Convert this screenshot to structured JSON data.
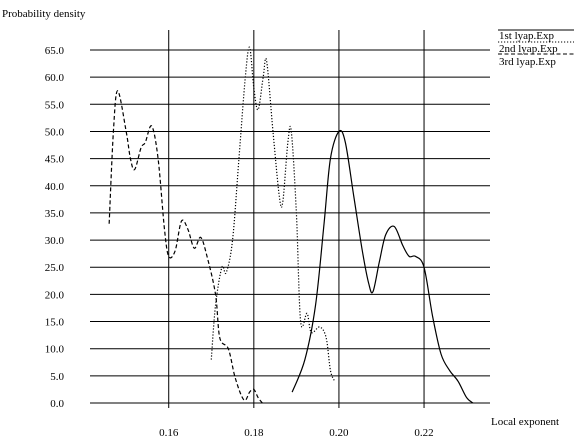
{
  "chart_data": {
    "type": "line",
    "title": "",
    "ylabel": "Probability density",
    "xlabel": "Local exponent",
    "xlim": [
      0.1415,
      0.2355
    ],
    "ylim": [
      0,
      65
    ],
    "x_ticks": [
      "0.16",
      "0.18",
      "0.20",
      "0.22"
    ],
    "y_ticks": [
      "0.0",
      "5.0",
      "10.0",
      "15.0",
      "20.0",
      "25.0",
      "30.0",
      "35.0",
      "40.0",
      "45.0",
      "50.0",
      "55.0",
      "60.0",
      "65.0"
    ],
    "grid": "on",
    "legend_position": "top-right",
    "series": [
      {
        "name": "1st lyap.Exp",
        "style": "solid",
        "color": "#000000",
        "points": [
          [
            0.189,
            2.0
          ],
          [
            0.192,
            8.0
          ],
          [
            0.1945,
            18.0
          ],
          [
            0.1965,
            33.0
          ],
          [
            0.198,
            45.0
          ],
          [
            0.2,
            50.0
          ],
          [
            0.2015,
            48.0
          ],
          [
            0.2035,
            38.0
          ],
          [
            0.2055,
            28.0
          ],
          [
            0.207,
            22.0
          ],
          [
            0.208,
            20.5
          ],
          [
            0.2095,
            26.0
          ],
          [
            0.211,
            31.0
          ],
          [
            0.213,
            32.5
          ],
          [
            0.215,
            29.0
          ],
          [
            0.2165,
            27.0
          ],
          [
            0.218,
            27.0
          ],
          [
            0.22,
            25.0
          ],
          [
            0.222,
            16.0
          ],
          [
            0.224,
            9.0
          ],
          [
            0.226,
            6.0
          ],
          [
            0.228,
            4.0
          ],
          [
            0.23,
            1.0
          ],
          [
            0.2315,
            0.0
          ]
        ]
      },
      {
        "name": "2nd lyap.Exp",
        "style": "dotted",
        "color": "#000000",
        "points": [
          [
            0.17,
            8.0
          ],
          [
            0.171,
            18.0
          ],
          [
            0.1725,
            25.0
          ],
          [
            0.1735,
            24.0
          ],
          [
            0.175,
            30.0
          ],
          [
            0.1765,
            45.0
          ],
          [
            0.178,
            60.0
          ],
          [
            0.179,
            65.5
          ],
          [
            0.18,
            58.0
          ],
          [
            0.181,
            54.0
          ],
          [
            0.1822,
            60.0
          ],
          [
            0.183,
            63.0
          ],
          [
            0.1845,
            50.0
          ],
          [
            0.186,
            38.0
          ],
          [
            0.1868,
            37.0
          ],
          [
            0.188,
            48.0
          ],
          [
            0.1888,
            50.0
          ],
          [
            0.19,
            35.0
          ],
          [
            0.191,
            15.0
          ],
          [
            0.1925,
            16.5
          ],
          [
            0.1935,
            13.0
          ],
          [
            0.1955,
            14.0
          ],
          [
            0.197,
            12.0
          ],
          [
            0.198,
            6.0
          ],
          [
            0.199,
            4.0
          ]
        ]
      },
      {
        "name": "3rd lyap.Exp",
        "style": "dashed",
        "color": "#000000",
        "points": [
          [
            0.146,
            33.0
          ],
          [
            0.147,
            50.0
          ],
          [
            0.148,
            57.5
          ],
          [
            0.15,
            50.0
          ],
          [
            0.151,
            45.0
          ],
          [
            0.152,
            43.0
          ],
          [
            0.1535,
            47.0
          ],
          [
            0.1545,
            48.0
          ],
          [
            0.156,
            51.0
          ],
          [
            0.1575,
            45.0
          ],
          [
            0.159,
            32.0
          ],
          [
            0.16,
            27.0
          ],
          [
            0.1615,
            28.0
          ],
          [
            0.163,
            33.5
          ],
          [
            0.1645,
            32.0
          ],
          [
            0.166,
            28.5
          ],
          [
            0.1675,
            30.5
          ],
          [
            0.169,
            27.0
          ],
          [
            0.171,
            20.0
          ],
          [
            0.172,
            12.0
          ],
          [
            0.174,
            10.0
          ],
          [
            0.1755,
            5.0
          ],
          [
            0.177,
            1.5
          ],
          [
            0.178,
            0.5
          ],
          [
            0.179,
            2.0
          ],
          [
            0.18,
            2.5
          ],
          [
            0.181,
            1.0
          ],
          [
            0.182,
            0.0
          ]
        ]
      }
    ]
  }
}
